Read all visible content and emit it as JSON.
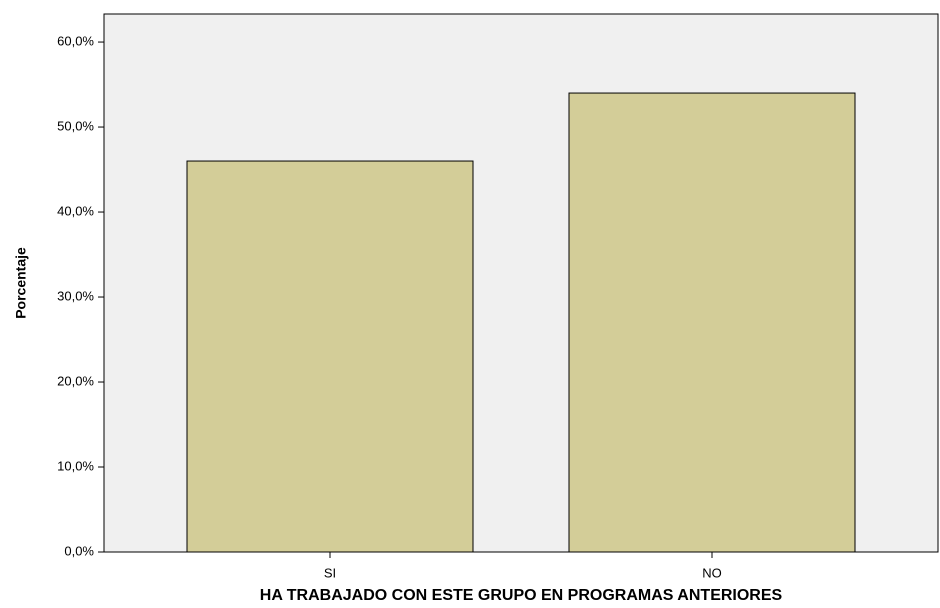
{
  "chart_data": {
    "type": "bar",
    "x_label": "HA TRABAJADO CON ESTE GRUPO EN PROGRAMAS ANTERIORES",
    "y_label": "Porcentaje",
    "categories": [
      "SI",
      "NO"
    ],
    "values": [
      46,
      54
    ],
    "color": "#d3cd98",
    "ylim": [
      0,
      63.3
    ],
    "yticks": [
      {
        "value": 0,
        "label": "0,0%"
      },
      {
        "value": 10,
        "label": "10,0%"
      },
      {
        "value": 20,
        "label": "20,0%"
      },
      {
        "value": 30,
        "label": "30,0%"
      },
      {
        "value": 40,
        "label": "40,0%"
      },
      {
        "value": 50,
        "label": "50,0%"
      },
      {
        "value": 60,
        "label": "60,0%"
      }
    ]
  }
}
